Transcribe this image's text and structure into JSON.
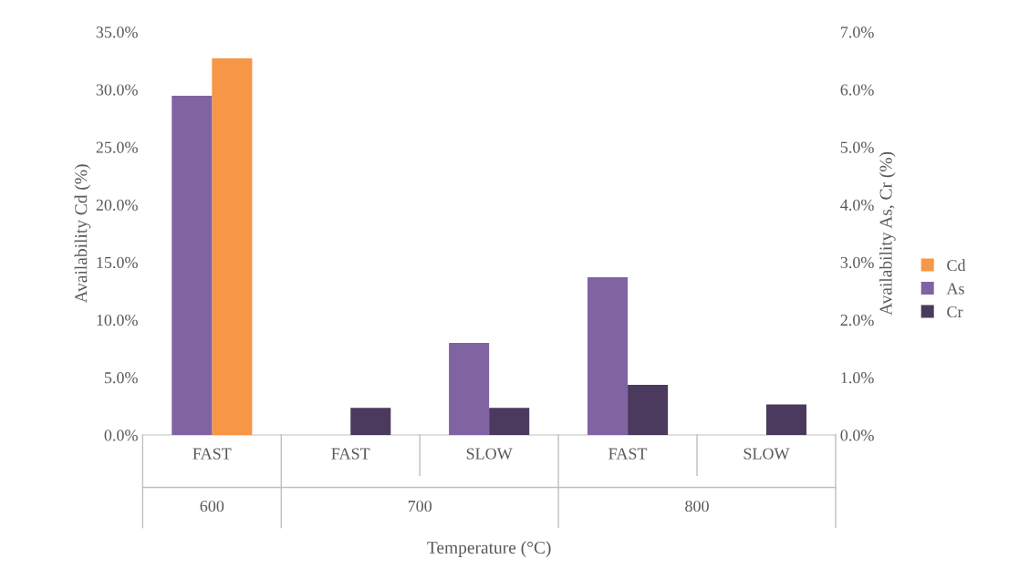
{
  "chart_data": {
    "type": "bar",
    "xlabel": "Temperature (°C)",
    "ylabel": "Availability Cd (%)",
    "y2label": "Availability As, Cr (%)",
    "categories": [
      "FAST",
      "FAST",
      "SLOW",
      "FAST",
      "SLOW"
    ],
    "annotations": [
      "600",
      "700",
      "800"
    ],
    "series": [
      {
        "name": "Cd",
        "color": "#f79646",
        "values": [
          32.7,
          null,
          null,
          null,
          null
        ]
      },
      {
        "name": "As",
        "color": "#8064a2",
        "axis": "y2",
        "values": [
          5.89,
          null,
          1.6,
          2.74,
          null
        ]
      },
      {
        "name": "Cr",
        "color": "#4b3a5e",
        "axis": "y2",
        "values": [
          null,
          0.47,
          0.47,
          0.87,
          0.53
        ]
      }
    ],
    "ylim": [
      0,
      35
    ],
    "yticks": [
      {
        "value": 0,
        "label": "0.0%"
      },
      {
        "value": 5,
        "label": "5.0%"
      },
      {
        "value": 10,
        "label": "10.0%"
      },
      {
        "value": 15,
        "label": "15.0%"
      },
      {
        "value": 20,
        "label": "20.0%"
      },
      {
        "value": 25,
        "label": "25.0%"
      },
      {
        "value": 30,
        "label": "30.0%"
      },
      {
        "value": 35,
        "label": "35.0%"
      }
    ],
    "y2lim": [
      0,
      7
    ],
    "y2ticks": [
      {
        "value": 0,
        "label": "0.0%"
      },
      {
        "value": 1,
        "label": "1.0%"
      },
      {
        "value": 2,
        "label": "2.0%"
      },
      {
        "value": 3,
        "label": "3.0%"
      },
      {
        "value": 4,
        "label": "4.0%"
      },
      {
        "value": 5,
        "label": "5.0%"
      },
      {
        "value": 6,
        "label": "6.0%"
      },
      {
        "value": 7,
        "label": "7.0%"
      }
    ],
    "grid": false,
    "legend": "right"
  }
}
